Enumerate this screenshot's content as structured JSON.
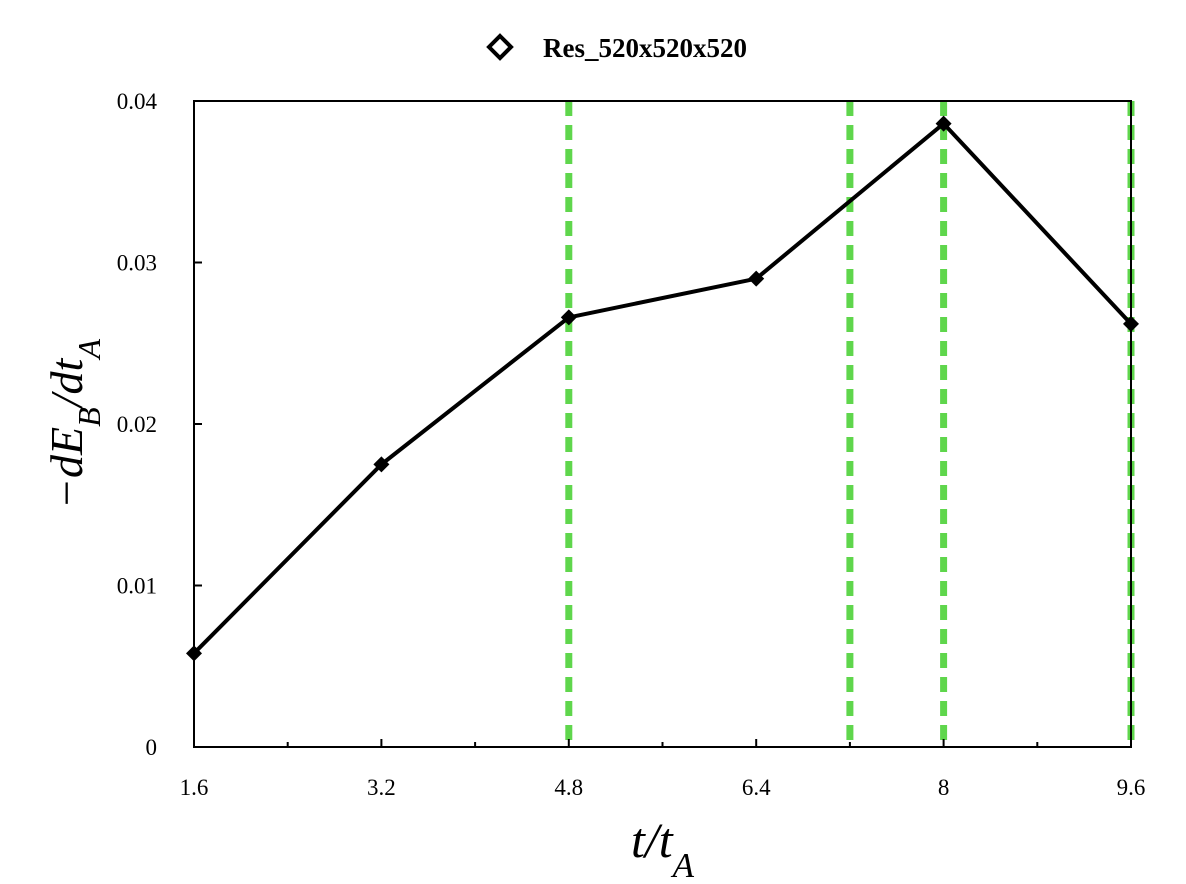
{
  "chart_data": {
    "type": "line",
    "title": "",
    "xlabel": "t/t_A",
    "ylabel": "-dE_B/dt_A",
    "xlim": [
      1.6,
      9.6
    ],
    "ylim": [
      0,
      0.04
    ],
    "x_ticks": [
      1.6,
      3.2,
      4.8,
      6.4,
      8,
      9.6
    ],
    "x_tick_labels": [
      "1.6",
      "3.2",
      "4.8",
      "6.4",
      "8",
      "9.6"
    ],
    "x_minor_ticks": [
      2.4,
      4.0,
      5.6,
      7.2,
      8.8
    ],
    "y_ticks": [
      0,
      0.01,
      0.02,
      0.03,
      0.04
    ],
    "y_tick_labels": [
      "0",
      "0.01",
      "0.02",
      "0.03",
      "0.04"
    ],
    "grid": false,
    "legend_position": "top-center",
    "series": [
      {
        "name": "Res_520x520x520",
        "color": "#000000",
        "marker": "diamond",
        "x": [
          1.6,
          3.2,
          4.8,
          6.4,
          8.0,
          9.6
        ],
        "y": [
          0.0058,
          0.0175,
          0.0266,
          0.029,
          0.0386,
          0.0262
        ]
      }
    ],
    "vertical_lines": {
      "color": "#5fd64c",
      "style": "dashed",
      "x": [
        4.8,
        7.2,
        8.0,
        9.6
      ]
    }
  }
}
